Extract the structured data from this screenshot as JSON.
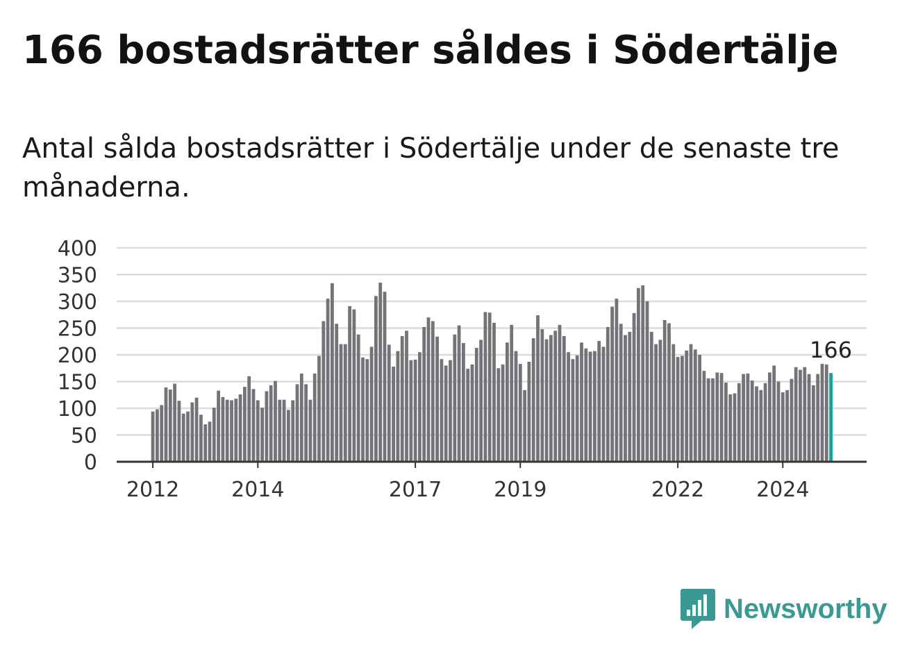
{
  "title": "166 bostadsrätter såldes i Södertälje",
  "subtitle": "Antal sålda bostadsrätter i Södertälje under de senaste tre månaderna.",
  "brand": {
    "name": "Newsworthy",
    "color": "#3a9a93",
    "icon": "bar-chart-speech-bubble-icon"
  },
  "colors": {
    "bar": "#747378",
    "highlight": "#1f9e97",
    "grid": "#dcdcdc",
    "axis": "#333333"
  },
  "chart_data": {
    "type": "bar",
    "x_start": "2012-01",
    "x_unit": "month",
    "ylim": [
      0,
      400
    ],
    "yticks": [
      0,
      50,
      100,
      150,
      200,
      250,
      300,
      350,
      400
    ],
    "xticks": [
      "2012",
      "2014",
      "2017",
      "2019",
      "2022",
      "2024"
    ],
    "xlabel": "",
    "ylabel": "",
    "grid": true,
    "highlight_last": true,
    "last_label": "166",
    "values": [
      94,
      98,
      106,
      139,
      135,
      146,
      114,
      90,
      94,
      111,
      120,
      88,
      70,
      75,
      101,
      133,
      121,
      116,
      115,
      118,
      126,
      140,
      160,
      136,
      115,
      101,
      132,
      143,
      151,
      116,
      116,
      97,
      115,
      145,
      165,
      145,
      116,
      165,
      198,
      263,
      305,
      334,
      258,
      220,
      220,
      291,
      285,
      238,
      195,
      192,
      215,
      310,
      335,
      318,
      219,
      178,
      207,
      235,
      245,
      190,
      191,
      205,
      252,
      270,
      263,
      234,
      192,
      180,
      190,
      238,
      255,
      222,
      174,
      182,
      213,
      228,
      280,
      279,
      260,
      175,
      182,
      223,
      256,
      207,
      183,
      134,
      187,
      231,
      274,
      248,
      229,
      237,
      245,
      256,
      235,
      205,
      192,
      199,
      223,
      212,
      206,
      207,
      226,
      215,
      252,
      290,
      305,
      258,
      237,
      243,
      278,
      325,
      330,
      300,
      243,
      220,
      228,
      265,
      259,
      220,
      196,
      198,
      208,
      220,
      210,
      200,
      170,
      156,
      156,
      167,
      166,
      148,
      126,
      128,
      147,
      164,
      165,
      152,
      141,
      134,
      147,
      167,
      180,
      150,
      130,
      134,
      155,
      177,
      172,
      177,
      164,
      143,
      164,
      183,
      182,
      166
    ]
  }
}
